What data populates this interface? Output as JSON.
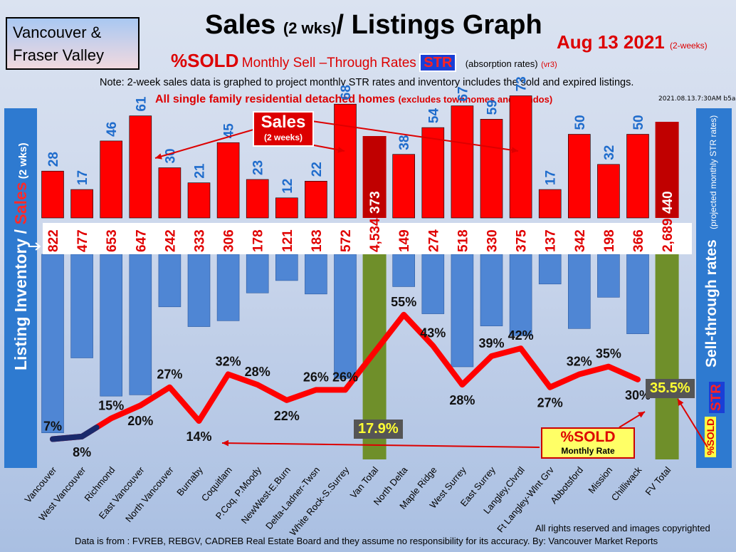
{
  "header": {
    "region_line1": "Vancouver &",
    "region_line2": "Fraser Valley",
    "title_main": "Sales",
    "title_small": "(2 wks)",
    "title_rest": "/ Listings Graph",
    "date": "Aug  13 2021",
    "date_note": "(2-weeks)",
    "subtitle_sold": "%SOLD",
    "subtitle_rest": "Monthly Sell –Through Rates",
    "subtitle_str": "STR",
    "subtitle_abs": "(absorption rates)",
    "subtitle_ver": "(vr3)",
    "note": "Note: 2-week sales data is graphed to project monthly STR rates and inventory includes the sold and expired listings.",
    "detached": "All single family residential detached homes",
    "detached_note": "(excludes townhomes and condos)",
    "timestamp": "2021.08.13.7:30AM b5a"
  },
  "axes": {
    "left_label_a": "Listing Inventory / ",
    "left_label_b": "Sales",
    "left_label_c": " (2  wks)",
    "right_label_main": "Sell-through rates",
    "right_label_small": "(projected monthly STR rates)",
    "right_str": "STR",
    "right_sold": "%SOLD"
  },
  "callouts": {
    "sales_title": "Sales",
    "sales_sub": "(2 weeks)",
    "sold_title": "%SOLD",
    "sold_sub": "Monthly Rate",
    "van_total_pct": "17.9%",
    "fv_total_pct": "35.5%"
  },
  "footer": {
    "rights": "All rights reserved and  images copyrighted",
    "source": "Data is from : FVREB, REBGV, CADREB Real Estate Board and they assume no responsibility for its accuracy. By: Vancouver Market Reports"
  },
  "colors": {
    "sales": "#ff0000",
    "inventory": "#4f86d4",
    "total_bar": "#6f8f2a",
    "total_sales": "#c00000",
    "line": "#ff0000",
    "line_start": "#1a2a6c"
  },
  "chart_data": {
    "type": "bar",
    "categories": [
      "Vancouver",
      "West Vancouver",
      "Richmond",
      "East Vancouver",
      "North Vancouver",
      "Burnaby",
      "Coquitlam",
      "P.Coq, P.Moody",
      "NewWest-E.Burn",
      "Delta-Ladner-Twsn",
      "White Rock-S.Surrey",
      "Van Total",
      "North Delta",
      "Maple Ridge",
      "West Surrey",
      "East Surrey",
      "Langley,Clvrdl",
      "Ft Langley-Wlnt Grv",
      "Abbotsford",
      "Mission",
      "Chilliwack",
      "FV Total"
    ],
    "series": [
      {
        "name": "Sales",
        "values": [
          28,
          17,
          46,
          61,
          30,
          21,
          45,
          23,
          12,
          22,
          68,
          373,
          38,
          54,
          67,
          59,
          73,
          17,
          50,
          32,
          50,
          440
        ]
      },
      {
        "name": "Listing Inventory",
        "values": [
          822,
          477,
          653,
          647,
          242,
          333,
          306,
          178,
          121,
          183,
          572,
          4534,
          149,
          274,
          518,
          330,
          375,
          137,
          342,
          198,
          366,
          2689
        ],
        "labels": [
          "822",
          "477",
          "653",
          "647",
          "242",
          "333",
          "306",
          "178",
          "121",
          "183",
          "572",
          "4,534",
          "149",
          "274",
          "518",
          "330",
          "375",
          "137",
          "342",
          "198",
          "366",
          "2,689"
        ]
      },
      {
        "name": "%SOLD Monthly Rate",
        "values": [
          7,
          8,
          15,
          20,
          27,
          14,
          32,
          28,
          22,
          26,
          26,
          17.9,
          55,
          43,
          28,
          39,
          42,
          27,
          32,
          35,
          30,
          35.5
        ],
        "labels": [
          "7%",
          "8%",
          "15%",
          "20%",
          "27%",
          "14%",
          "32%",
          "28%",
          "22%",
          "26%",
          "26%",
          "17.9%",
          "55%",
          "43%",
          "28%",
          "39%",
          "42%",
          "27%",
          "32%",
          "35%",
          "30%",
          "35.5%"
        ]
      }
    ]
  }
}
